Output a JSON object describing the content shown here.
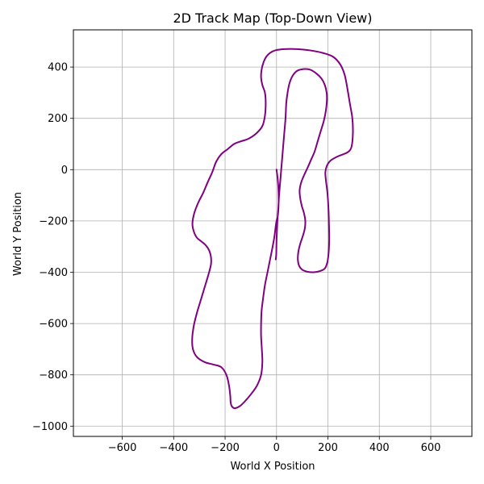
{
  "chart_data": {
    "type": "line",
    "title": "2D Track Map (Top-Down View)",
    "xlabel": "World X Position",
    "ylabel": "World Y Position",
    "xlim": [
      -790,
      760
    ],
    "ylim": [
      -1040,
      545
    ],
    "xticks": [
      -600,
      -400,
      -200,
      0,
      200,
      400,
      600
    ],
    "yticks": [
      -1000,
      -800,
      -600,
      -400,
      -200,
      0,
      200,
      400
    ],
    "xtick_labels": [
      "−600",
      "−400",
      "−200",
      "0",
      "200",
      "400",
      "600"
    ],
    "ytick_labels": [
      "−1000",
      "−800",
      "−600",
      "−400",
      "−200",
      "0",
      "200",
      "400"
    ],
    "grid": true,
    "aspect": "equal",
    "series": [
      {
        "color": "#800080",
        "x": [
          0,
          5,
          8,
          8,
          5,
          0,
          -3,
          -8,
          -15,
          -25,
          -35,
          -45,
          -52,
          -58,
          -60,
          -60,
          -57,
          -55,
          -60,
          -75,
          -95,
          -120,
          -140,
          -160,
          -172,
          -178,
          -180,
          -185,
          -195,
          -215,
          -245,
          -280,
          -310,
          -325,
          -328,
          -322,
          -310,
          -295,
          -280,
          -265,
          -255,
          -255,
          -262,
          -275,
          -292,
          -310,
          -322,
          -327,
          -320,
          -305,
          -285,
          -268,
          -250,
          -235,
          -215,
          -190,
          -165,
          -140,
          -110,
          -80,
          -55,
          -45,
          -42,
          -45,
          -55,
          -60,
          -58,
          -50,
          -40,
          -25,
          -5,
          30,
          80,
          130,
          180,
          220,
          248,
          265,
          275,
          285,
          295,
          297,
          292,
          280,
          260,
          235,
          210,
          196,
          190,
          192,
          198,
          202,
          204,
          205,
          203,
          198,
          188,
          170,
          145,
          120,
          100,
          88,
          83,
          85,
          92,
          102,
          110,
          112,
          107,
          98,
          92,
          90,
          96,
          108,
          122,
          135,
          148,
          160,
          172,
          184,
          192,
          196,
          195,
          188,
          175,
          155,
          130,
          105,
          80,
          62,
          50,
          43,
          38,
          35,
          30,
          25,
          20,
          15,
          10,
          7,
          4,
          2,
          0,
          -1,
          -3
        ],
        "y": [
          0,
          -40,
          -90,
          -140,
          -180,
          -200,
          -220,
          -260,
          -300,
          -350,
          -400,
          -450,
          -500,
          -550,
          -600,
          -650,
          -700,
          -750,
          -800,
          -840,
          -870,
          -900,
          -920,
          -930,
          -925,
          -910,
          -880,
          -840,
          -800,
          -770,
          -760,
          -750,
          -730,
          -700,
          -660,
          -610,
          -560,
          -510,
          -460,
          -410,
          -370,
          -340,
          -315,
          -295,
          -280,
          -265,
          -240,
          -210,
          -170,
          -130,
          -90,
          -50,
          -10,
          30,
          60,
          80,
          100,
          110,
          120,
          140,
          170,
          210,
          260,
          300,
          330,
          360,
          390,
          420,
          440,
          455,
          465,
          470,
          470,
          465,
          455,
          440,
          410,
          370,
          320,
          260,
          200,
          140,
          90,
          70,
          60,
          50,
          35,
          15,
          -10,
          -40,
          -90,
          -150,
          -210,
          -270,
          -320,
          -360,
          -385,
          -395,
          -400,
          -398,
          -390,
          -375,
          -350,
          -320,
          -290,
          -260,
          -230,
          -200,
          -170,
          -140,
          -110,
          -80,
          -50,
          -20,
          10,
          40,
          70,
          110,
          150,
          190,
          230,
          270,
          300,
          330,
          355,
          375,
          390,
          392,
          385,
          365,
          335,
          300,
          260,
          200,
          140,
          80,
          20,
          -40,
          -100,
          -150,
          -190,
          -230,
          -280,
          -330,
          -350
        ]
      }
    ]
  }
}
